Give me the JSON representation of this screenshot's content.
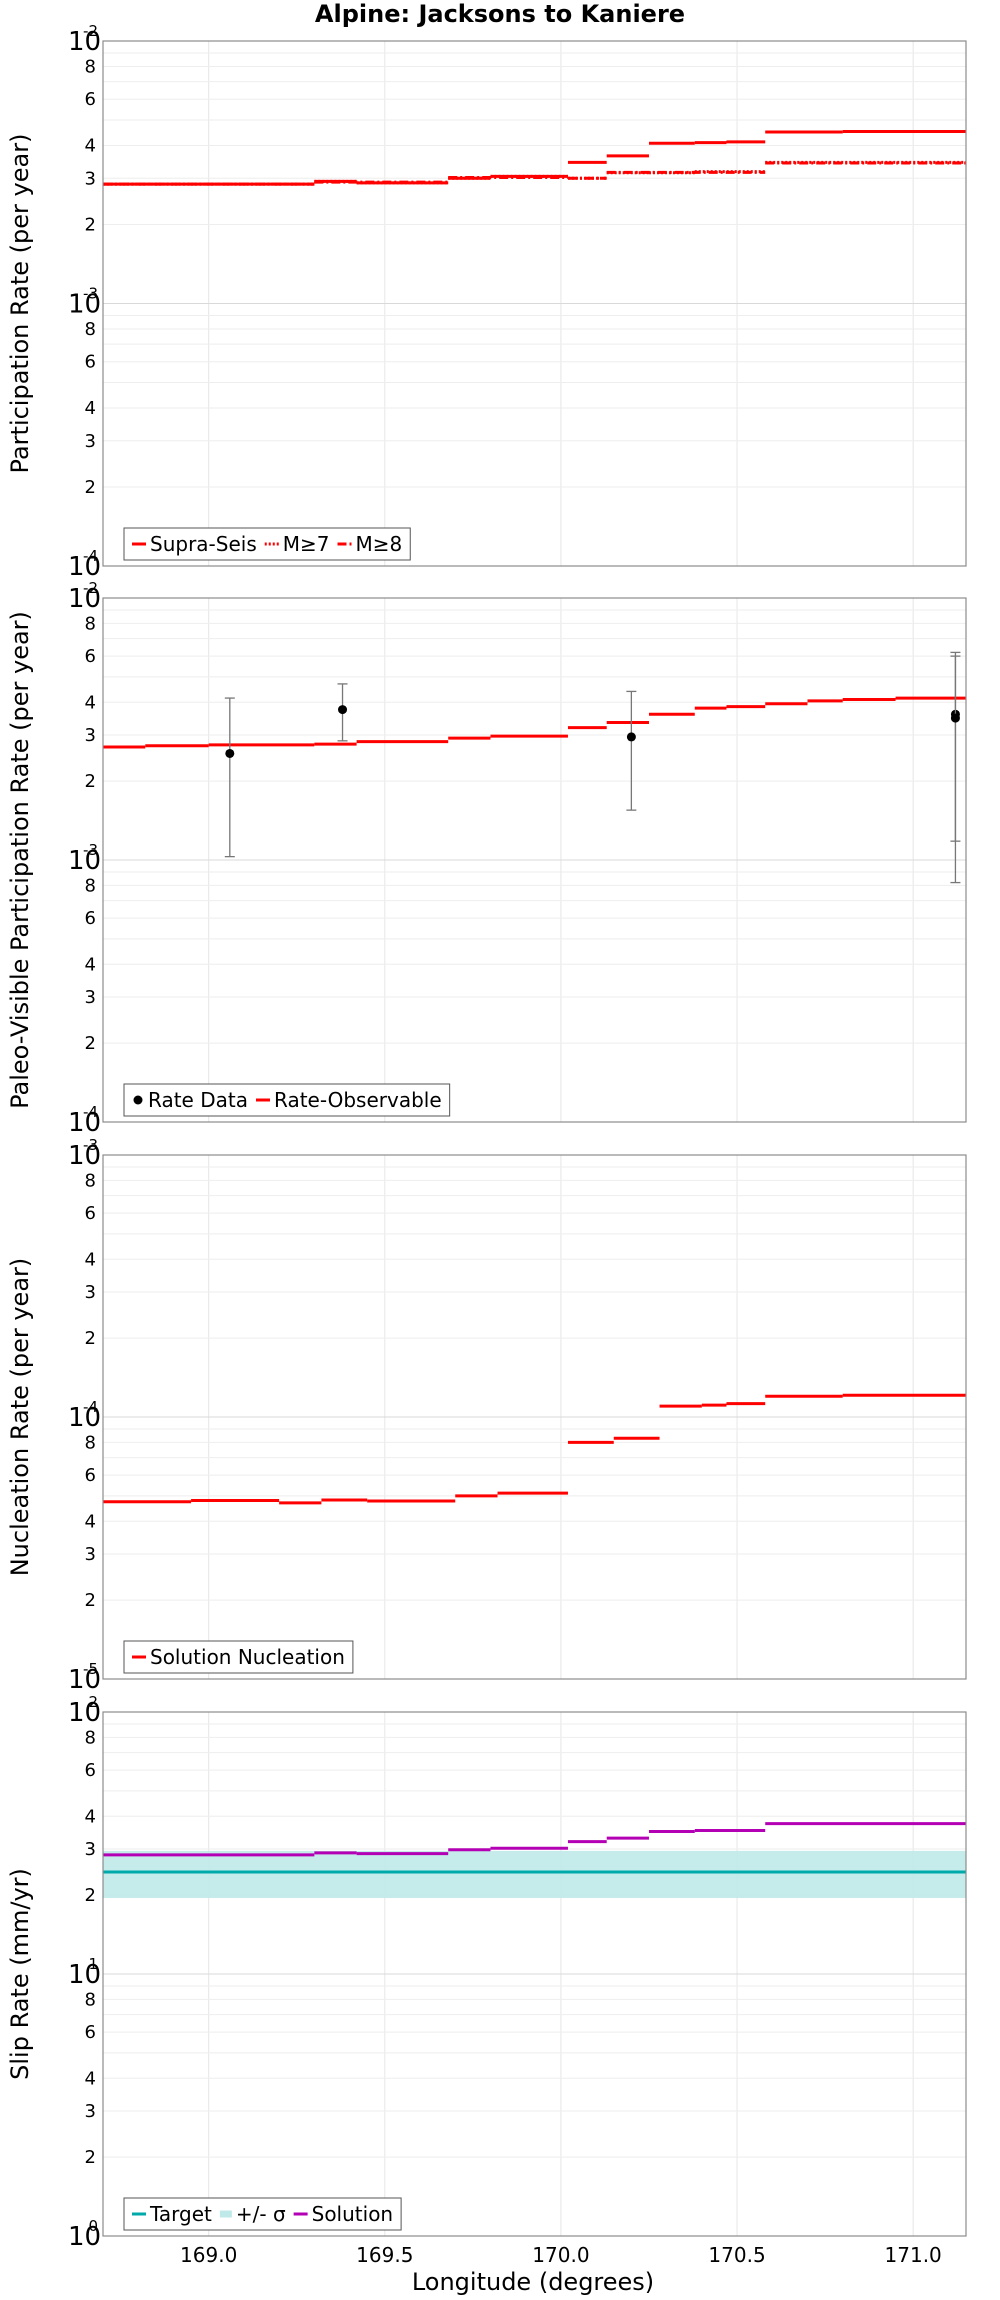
{
  "figure": {
    "title": "Alpine: Jacksons to Kaniere",
    "xlabel": "Longitude (degrees)",
    "xlim": [
      168.7,
      171.15
    ],
    "xticks": [
      "169.0",
      "169.5",
      "170.0",
      "170.5",
      "171.0"
    ],
    "xtick_values": [
      169.0,
      169.5,
      170.0,
      170.5,
      171.0
    ]
  },
  "chart_data": [
    {
      "type": "line",
      "id": "participation",
      "ylabel": "Participation Rate (per year)",
      "yscale": "log",
      "ylim_exp": [
        -4,
        -2
      ],
      "ymajor": [
        {
          "base": "10",
          "exp": "-4"
        },
        {
          "base": "10",
          "exp": "-3"
        },
        {
          "base": "10",
          "exp": "-2"
        }
      ],
      "yminor": [
        "2",
        "3",
        "4",
        "6",
        "8"
      ],
      "series": [
        {
          "name": "Supra-Seis",
          "style": "solid",
          "color": "#ff0000",
          "steps": [
            {
              "x0": 168.7,
              "x1": 169.3,
              "y": 0.00285
            },
            {
              "x0": 169.3,
              "x1": 169.42,
              "y": 0.00292
            },
            {
              "x0": 169.42,
              "x1": 169.68,
              "y": 0.00288
            },
            {
              "x0": 169.68,
              "x1": 169.8,
              "y": 0.003
            },
            {
              "x0": 169.8,
              "x1": 170.02,
              "y": 0.00305
            },
            {
              "x0": 170.02,
              "x1": 170.13,
              "y": 0.00345
            },
            {
              "x0": 170.13,
              "x1": 170.25,
              "y": 0.00365
            },
            {
              "x0": 170.25,
              "x1": 170.38,
              "y": 0.00408
            },
            {
              "x0": 170.38,
              "x1": 170.47,
              "y": 0.0041
            },
            {
              "x0": 170.47,
              "x1": 170.58,
              "y": 0.00413
            },
            {
              "x0": 170.58,
              "x1": 170.8,
              "y": 0.0045
            },
            {
              "x0": 170.8,
              "x1": 171.15,
              "y": 0.00452
            }
          ]
        },
        {
          "name": "M≥7",
          "style": "dotted",
          "color": "#ff0000",
          "steps": [
            {
              "x0": 168.7,
              "x1": 169.3,
              "y": 0.00285
            },
            {
              "x0": 169.3,
              "x1": 169.42,
              "y": 0.00292
            },
            {
              "x0": 169.42,
              "x1": 169.68,
              "y": 0.00288
            },
            {
              "x0": 169.68,
              "x1": 169.8,
              "y": 0.003
            },
            {
              "x0": 169.8,
              "x1": 170.02,
              "y": 0.00305
            },
            {
              "x0": 170.02,
              "x1": 170.13,
              "y": 0.003
            },
            {
              "x0": 170.13,
              "x1": 170.25,
              "y": 0.00315
            },
            {
              "x0": 170.25,
              "x1": 170.38,
              "y": 0.00315
            },
            {
              "x0": 170.38,
              "x1": 170.58,
              "y": 0.00318
            },
            {
              "x0": 170.58,
              "x1": 171.15,
              "y": 0.00345
            }
          ]
        },
        {
          "name": "M≥8",
          "style": "dashdot",
          "color": "#ff0000",
          "steps": [
            {
              "x0": 168.7,
              "x1": 169.3,
              "y": 0.00285
            },
            {
              "x0": 169.3,
              "x1": 169.68,
              "y": 0.0029
            },
            {
              "x0": 169.68,
              "x1": 170.02,
              "y": 0.00302
            },
            {
              "x0": 170.02,
              "x1": 170.13,
              "y": 0.003
            },
            {
              "x0": 170.13,
              "x1": 170.58,
              "y": 0.00316
            },
            {
              "x0": 170.58,
              "x1": 171.15,
              "y": 0.00343
            }
          ]
        }
      ],
      "legend": [
        {
          "label": "Supra-Seis",
          "style": "solid"
        },
        {
          "label": "M≥7",
          "style": "dotted"
        },
        {
          "label": "M≥8",
          "style": "dashdot"
        }
      ]
    },
    {
      "type": "line",
      "id": "paleo",
      "ylabel": "Paleo-Visible Participation Rate (per year)",
      "yscale": "log",
      "ylim_exp": [
        -4,
        -2
      ],
      "ymajor": [
        {
          "base": "10",
          "exp": "-4"
        },
        {
          "base": "10",
          "exp": "-3"
        },
        {
          "base": "10",
          "exp": "-2"
        }
      ],
      "yminor": [
        "2",
        "3",
        "4",
        "6",
        "8"
      ],
      "series": [
        {
          "name": "Rate-Observable",
          "style": "solid",
          "color": "#ff0000",
          "steps": [
            {
              "x0": 168.7,
              "x1": 168.82,
              "y": 0.0027
            },
            {
              "x0": 168.82,
              "x1": 169.0,
              "y": 0.00273
            },
            {
              "x0": 169.0,
              "x1": 169.3,
              "y": 0.00275
            },
            {
              "x0": 169.3,
              "x1": 169.42,
              "y": 0.00277
            },
            {
              "x0": 169.42,
              "x1": 169.68,
              "y": 0.00283
            },
            {
              "x0": 169.68,
              "x1": 169.8,
              "y": 0.00292
            },
            {
              "x0": 169.8,
              "x1": 170.02,
              "y": 0.00297
            },
            {
              "x0": 170.02,
              "x1": 170.13,
              "y": 0.0032
            },
            {
              "x0": 170.13,
              "x1": 170.25,
              "y": 0.00335
            },
            {
              "x0": 170.25,
              "x1": 170.38,
              "y": 0.0036
            },
            {
              "x0": 170.38,
              "x1": 170.47,
              "y": 0.0038
            },
            {
              "x0": 170.47,
              "x1": 170.58,
              "y": 0.00385
            },
            {
              "x0": 170.58,
              "x1": 170.7,
              "y": 0.00395
            },
            {
              "x0": 170.7,
              "x1": 170.8,
              "y": 0.00405
            },
            {
              "x0": 170.8,
              "x1": 170.95,
              "y": 0.0041
            },
            {
              "x0": 170.95,
              "x1": 171.15,
              "y": 0.00415
            }
          ]
        }
      ],
      "points": {
        "name": "Rate Data",
        "color": "#000000",
        "data": [
          {
            "x": 169.06,
            "y": 0.00255,
            "lo": 0.00103,
            "hi": 0.00415
          },
          {
            "x": 169.38,
            "y": 0.00375,
            "lo": 0.00285,
            "hi": 0.0047
          },
          {
            "x": 170.2,
            "y": 0.00295,
            "lo": 0.00155,
            "hi": 0.0044
          },
          {
            "x": 171.12,
            "y": 0.0036,
            "lo": 0.00082,
            "hi": 0.0062
          },
          {
            "x": 171.12,
            "y": 0.00348,
            "lo": 0.00118,
            "hi": 0.006
          }
        ]
      },
      "legend": [
        {
          "label": "Rate Data",
          "style": "point"
        },
        {
          "label": "Rate-Observable",
          "style": "solid"
        }
      ]
    },
    {
      "type": "line",
      "id": "nucleation",
      "ylabel": "Nucleation Rate (per year)",
      "yscale": "log",
      "ylim_exp": [
        -5,
        -3
      ],
      "ymajor": [
        {
          "base": "10",
          "exp": "-5"
        },
        {
          "base": "10",
          "exp": "-4"
        },
        {
          "base": "10",
          "exp": "-3"
        }
      ],
      "yminor": [
        "2",
        "3",
        "4",
        "6",
        "8"
      ],
      "series": [
        {
          "name": "Solution Nucleation",
          "style": "solid",
          "color": "#ff0000",
          "steps": [
            {
              "x0": 168.7,
              "x1": 168.95,
              "y": 4.75e-05
            },
            {
              "x0": 168.95,
              "x1": 169.2,
              "y": 4.8e-05
            },
            {
              "x0": 169.2,
              "x1": 169.32,
              "y": 4.7e-05
            },
            {
              "x0": 169.32,
              "x1": 169.45,
              "y": 4.82e-05
            },
            {
              "x0": 169.45,
              "x1": 169.7,
              "y": 4.78e-05
            },
            {
              "x0": 169.7,
              "x1": 169.82,
              "y": 5e-05
            },
            {
              "x0": 169.82,
              "x1": 170.02,
              "y": 5.12e-05
            },
            {
              "x0": 170.02,
              "x1": 170.15,
              "y": 8e-05
            },
            {
              "x0": 170.15,
              "x1": 170.28,
              "y": 8.3e-05
            },
            {
              "x0": 170.28,
              "x1": 170.4,
              "y": 0.00011
            },
            {
              "x0": 170.4,
              "x1": 170.47,
              "y": 0.000111
            },
            {
              "x0": 170.47,
              "x1": 170.58,
              "y": 0.0001125
            },
            {
              "x0": 170.58,
              "x1": 170.8,
              "y": 0.00012
            },
            {
              "x0": 170.8,
              "x1": 171.15,
              "y": 0.000121
            }
          ]
        }
      ],
      "legend": [
        {
          "label": "Solution Nucleation",
          "style": "solid"
        }
      ]
    },
    {
      "type": "line",
      "id": "slip",
      "ylabel": "Slip Rate (mm/yr)",
      "yscale": "log",
      "ylim_exp": [
        0,
        2
      ],
      "ymajor": [
        {
          "base": "10",
          "exp": "0"
        },
        {
          "base": "10",
          "exp": "1"
        },
        {
          "base": "10",
          "exp": "2"
        }
      ],
      "yminor": [
        "2",
        "3",
        "4",
        "6",
        "8"
      ],
      "target": {
        "name": "Target",
        "value": 24.5,
        "color": "#00aaaa"
      },
      "band": {
        "name": "+/- σ",
        "lo": 19.5,
        "hi": 29.5,
        "color": "#bfe9e9"
      },
      "series": [
        {
          "name": "Solution",
          "style": "solid",
          "color": "#b400b4",
          "steps": [
            {
              "x0": 168.7,
              "x1": 169.3,
              "y": 28.5
            },
            {
              "x0": 169.3,
              "x1": 169.42,
              "y": 29.0
            },
            {
              "x0": 169.42,
              "x1": 169.68,
              "y": 28.8
            },
            {
              "x0": 169.68,
              "x1": 169.8,
              "y": 29.8
            },
            {
              "x0": 169.8,
              "x1": 170.02,
              "y": 30.2
            },
            {
              "x0": 170.02,
              "x1": 170.13,
              "y": 32.0
            },
            {
              "x0": 170.13,
              "x1": 170.25,
              "y": 33.0
            },
            {
              "x0": 170.25,
              "x1": 170.38,
              "y": 35.0
            },
            {
              "x0": 170.38,
              "x1": 170.58,
              "y": 35.3
            },
            {
              "x0": 170.58,
              "x1": 171.15,
              "y": 37.5
            }
          ]
        }
      ],
      "legend": [
        {
          "label": "Target",
          "style": "solid-teal"
        },
        {
          "label": "+/- σ",
          "style": "band"
        },
        {
          "label": "Solution",
          "style": "solid-purple"
        }
      ]
    }
  ]
}
